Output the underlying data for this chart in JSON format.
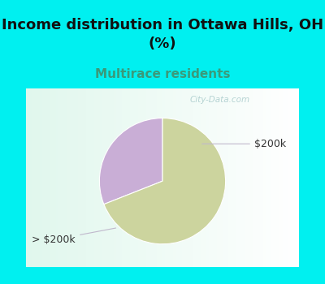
{
  "title": "Income distribution in Ottawa Hills, OH\n(%)",
  "subtitle": "Multirace residents",
  "slices": [
    {
      "label": "$200k",
      "value": 31,
      "color": "#c9aed6"
    },
    {
      "label": "> $200k",
      "value": 69,
      "color": "#ccd49e"
    }
  ],
  "title_fontsize": 13,
  "subtitle_fontsize": 11,
  "subtitle_color": "#3a9a7a",
  "title_color": "#111111",
  "bg_color": "#00f0f0",
  "pie_box_color": "#f0faf5",
  "startangle": 90,
  "watermark": "City-Data.com",
  "watermark_color": "#aacccc",
  "label_color": "#333333",
  "annotation_line_color": "#c0b8cc"
}
